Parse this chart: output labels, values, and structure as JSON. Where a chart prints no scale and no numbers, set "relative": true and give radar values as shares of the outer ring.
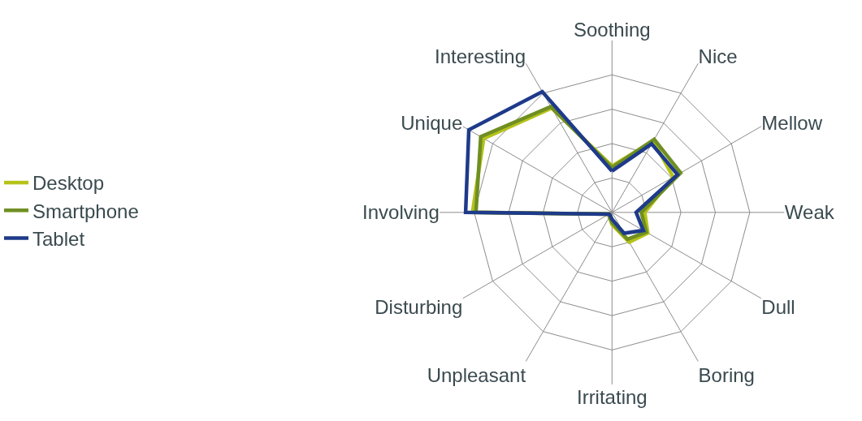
{
  "chart_data": {
    "type": "radar",
    "relative": true,
    "grid": true,
    "legend": "left",
    "marker": "none",
    "categories": [
      "Soothing",
      "Nice",
      "Mellow",
      "Weak",
      "Dull",
      "Boring",
      "Irritating",
      "Unpleasant",
      "Disturbing",
      "Involving",
      "Unique",
      "Interesting"
    ],
    "series": [
      {
        "name": "Desktop",
        "color": "#b5c21a",
        "values": [
          0.27,
          0.48,
          0.41,
          0.19,
          0.24,
          0.2,
          0.07,
          0.03,
          0.02,
          0.81,
          0.86,
          0.7
        ]
      },
      {
        "name": "Smartphone",
        "color": "#6f8f22",
        "values": [
          0.26,
          0.49,
          0.46,
          0.17,
          0.23,
          0.18,
          0.06,
          0.03,
          0.02,
          0.79,
          0.88,
          0.71
        ]
      },
      {
        "name": "Tablet",
        "color": "#1e3a8a",
        "values": [
          0.24,
          0.46,
          0.44,
          0.14,
          0.21,
          0.14,
          0.04,
          0.02,
          0.02,
          0.85,
          0.96,
          0.81
        ]
      }
    ]
  }
}
